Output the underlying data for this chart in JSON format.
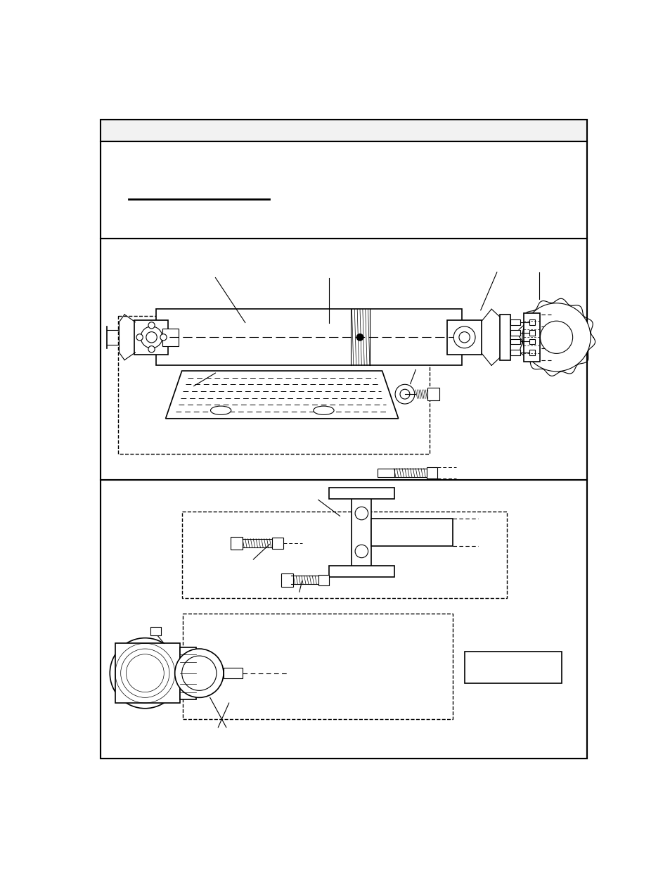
{
  "page_bg": "#ffffff",
  "border_color": "#000000",
  "lw_main": 1.5,
  "lw_med": 1.2,
  "lw_thin": 0.8
}
